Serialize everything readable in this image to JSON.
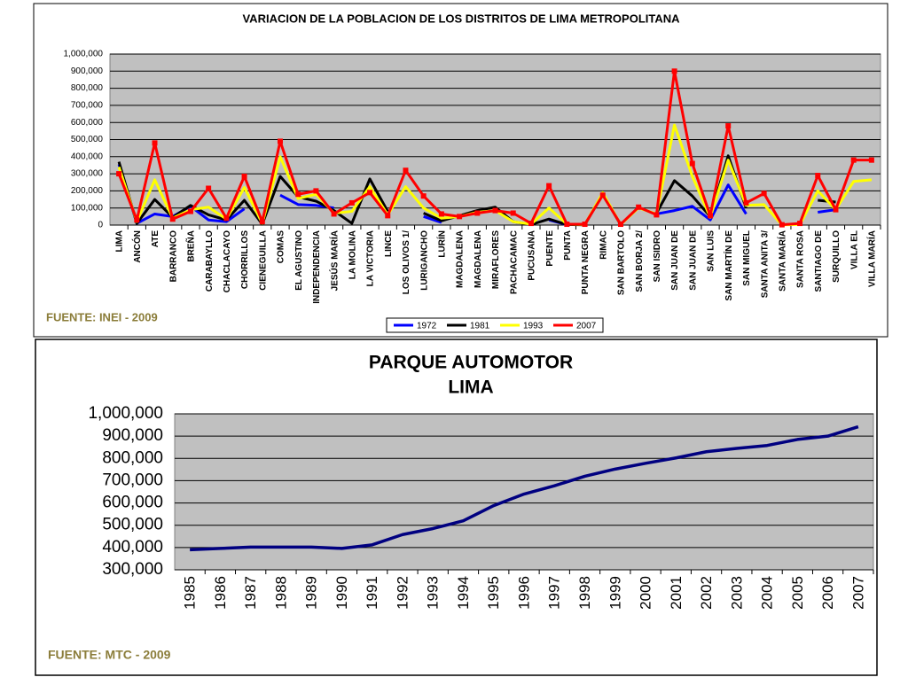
{
  "chart_data": [
    {
      "type": "line",
      "title": "VARIACION DE LA POBLACION DE LOS DISTRITOS DE LIMA METROPOLITANA",
      "source": "FUENTE: INEI - 2009",
      "categories": [
        "LIMA",
        "ANCÓN",
        "ATE",
        "BARRANCO",
        "BREÑA",
        "CARABAYLLO",
        "CHACLACAYO",
        "CHORRILLOS",
        "CIENEGUILLA",
        "COMAS",
        "EL AGUSTINO",
        "INDEPENDENCIA",
        "JESÚS MARÍA",
        "LA MOLINA",
        "LA VICTORIA",
        "LINCE",
        "LOS OLIVOS 1/",
        "LURIGANCHO",
        "LURÍN",
        "MAGDALENA",
        "MAGDALENA",
        "MIRAFLORES",
        "PACHACAMAC",
        "PUCUSANA",
        "PUENTE",
        "PUNTA",
        "PUNTA NEGRA",
        "RIMAC",
        "SAN BARTOLO",
        "SAN BORJA 2/",
        "SAN ISIDRO",
        "SAN JUAN DE",
        "SAN JUAN DE",
        "SAN LUIS",
        "SAN MARTÍN DE",
        "SAN MIGUEL",
        "SANTA ANITA 3/",
        "SANTA MARÍA",
        "SANTA ROSA",
        "SANTIAGO DE",
        "SURQUILLO",
        "VILLA EL",
        "VILLA MARÍA"
      ],
      "series": [
        {
          "name": "1972",
          "color": "#0000ff",
          "values": [
            355000,
            10000,
            65000,
            50000,
            110000,
            30000,
            20000,
            95000,
            null,
            175000,
            120000,
            115000,
            100000,
            null,
            null,
            null,
            null,
            50000,
            15000,
            null,
            null,
            null,
            null,
            null,
            30000,
            2000,
            null,
            null,
            null,
            null,
            65000,
            85000,
            110000,
            30000,
            235000,
            65000,
            null,
            null,
            null,
            75000,
            90000,
            null,
            180000
          ]
        },
        {
          "name": "1981",
          "color": "#000000",
          "values": [
            370000,
            10000,
            150000,
            45000,
            115000,
            60000,
            30000,
            145000,
            5000,
            285000,
            165000,
            140000,
            85000,
            10000,
            270000,
            80000,
            null,
            70000,
            25000,
            55000,
            85000,
            105000,
            20000,
            3000,
            35000,
            3000,
            1000,
            185000,
            1000,
            null,
            70000,
            260000,
            170000,
            50000,
            405000,
            100000,
            null,
            null,
            null,
            145000,
            135000,
            null,
            null
          ]
        },
        {
          "name": "1993",
          "color": "#ffff00",
          "values": [
            340000,
            20000,
            265000,
            40000,
            90000,
            105000,
            35000,
            220000,
            10000,
            400000,
            155000,
            180000,
            70000,
            80000,
            225000,
            60000,
            225000,
            100000,
            40000,
            50000,
            75000,
            85000,
            20000,
            5000,
            100000,
            5000,
            3000,
            190000,
            3000,
            100000,
            65000,
            585000,
            285000,
            45000,
            380000,
            115000,
            120000,
            1000,
            3000,
            200000,
            90000,
            255000,
            265000
          ]
        },
        {
          "name": "2007",
          "color": "#ff0000",
          "values": [
            300000,
            30000,
            480000,
            35000,
            80000,
            215000,
            40000,
            285000,
            20000,
            490000,
            180000,
            200000,
            65000,
            130000,
            190000,
            55000,
            320000,
            170000,
            65000,
            50000,
            70000,
            85000,
            70000,
            10000,
            230000,
            5000,
            5000,
            175000,
            5000,
            105000,
            60000,
            900000,
            360000,
            55000,
            580000,
            130000,
            185000,
            2000,
            10000,
            290000,
            90000,
            380000,
            380000
          ]
        }
      ],
      "ylim": [
        0,
        1000000
      ],
      "yticks": [
        0,
        {
          "value": 100000,
          "label": "100,000"
        },
        {
          "value": 200000,
          "label": "200,000"
        },
        {
          "value": 300000,
          "label": "300,000"
        },
        {
          "value": 400000,
          "label": "400,000"
        },
        {
          "value": 500000,
          "label": "500,000"
        },
        {
          "value": 600000,
          "label": "600,000"
        },
        {
          "value": 700000,
          "label": "700,000"
        },
        {
          "value": 800000,
          "label": "800,000"
        },
        {
          "value": 900000,
          "label": "900,000"
        },
        {
          "value": 1000000,
          "label": "1,000,000"
        }
      ],
      "grid": true,
      "legend": "bottom"
    },
    {
      "type": "line",
      "title": [
        "PARQUE AUTOMOTOR",
        "LIMA"
      ],
      "source": "FUENTE: MTC - 2009",
      "categories": [
        "1985",
        "1986",
        "1987",
        "1988",
        "1989",
        "1990",
        "1991",
        "1992",
        "1993",
        "1994",
        "1995",
        "1996",
        "1997",
        "1998",
        "1999",
        "2000",
        "2001",
        "2002",
        "2003",
        "2004",
        "2005",
        "2006",
        "2007"
      ],
      "series": [
        {
          "name": "",
          "color": "#000080",
          "values": [
            390000,
            396000,
            402000,
            402000,
            402000,
            396000,
            412000,
            458000,
            485000,
            520000,
            588000,
            640000,
            677000,
            720000,
            752000,
            778000,
            802000,
            830000,
            845000,
            858000,
            885000,
            900000,
            942000
          ]
        }
      ],
      "ylim": [
        300000,
        1000000
      ],
      "yticks": [
        {
          "value": 300000,
          "label": "300,000"
        },
        {
          "value": 400000,
          "label": "400,000"
        },
        {
          "value": 500000,
          "label": "500,000"
        },
        {
          "value": 600000,
          "label": "600,000"
        },
        {
          "value": 700000,
          "label": "700,000"
        },
        {
          "value": 800000,
          "label": "800,000"
        },
        {
          "value": 900000,
          "label": "900,000"
        },
        {
          "value": 1000000,
          "label": "1,000,000"
        }
      ],
      "grid": true
    }
  ]
}
